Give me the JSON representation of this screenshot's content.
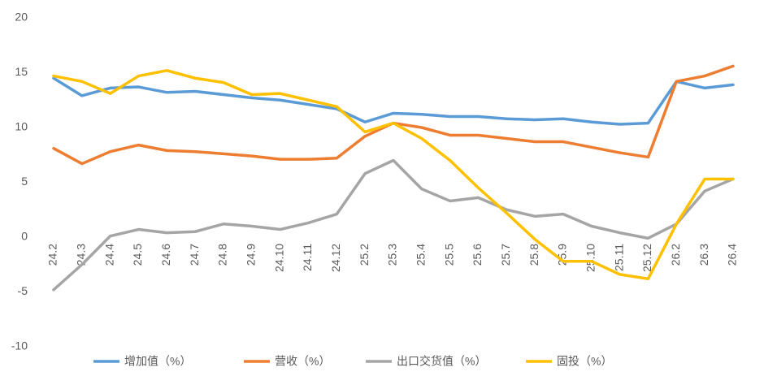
{
  "chart_data": {
    "type": "line",
    "categories": [
      "24.2",
      "24.3",
      "24.4",
      "24.5",
      "24.6",
      "24.7",
      "24.8",
      "24.9",
      "24.10",
      "24.11",
      "24.12",
      "25.2",
      "25.3",
      "25.4",
      "25.5",
      "25.6",
      "25.7",
      "25.8",
      "25.9",
      "25.10",
      "25.11",
      "25.12",
      "26.2",
      "26.3",
      "26.4"
    ],
    "series": [
      {
        "name": "增加值（%）",
        "color": "#5b9bd5",
        "values": [
          14.5,
          12.9,
          13.6,
          13.7,
          13.2,
          13.3,
          13.0,
          12.7,
          12.5,
          12.1,
          11.7,
          10.5,
          11.3,
          11.2,
          11.0,
          11.0,
          10.8,
          10.7,
          10.8,
          10.5,
          10.3,
          10.4,
          14.2,
          13.6,
          13.9
        ]
      },
      {
        "name": "营收（%）",
        "color": "#ed7d31",
        "values": [
          8.1,
          6.7,
          7.8,
          8.4,
          7.9,
          7.8,
          7.6,
          7.4,
          7.1,
          7.1,
          7.2,
          9.2,
          10.4,
          10.0,
          9.3,
          9.3,
          9.0,
          8.7,
          8.7,
          8.2,
          7.7,
          7.3,
          14.2,
          14.7,
          15.6
        ]
      },
      {
        "name": "出口交货值（%）",
        "color": "#a5a5a5",
        "values": [
          -4.8,
          -2.5,
          0.1,
          0.7,
          0.4,
          0.5,
          1.2,
          1.0,
          0.7,
          1.3,
          2.1,
          5.8,
          7.0,
          4.4,
          3.3,
          3.6,
          2.5,
          1.9,
          2.1,
          1.0,
          0.4,
          -0.1,
          1.2,
          4.2,
          5.3
        ]
      },
      {
        "name": "固投（%）",
        "color": "#ffc000",
        "values": [
          14.7,
          14.2,
          13.1,
          14.7,
          15.2,
          14.5,
          14.1,
          13.0,
          13.1,
          12.5,
          11.9,
          9.6,
          10.4,
          9.0,
          7.0,
          4.5,
          2.2,
          -0.2,
          -2.2,
          -2.2,
          -3.4,
          -3.8,
          1.2,
          5.3,
          5.3
        ]
      }
    ],
    "ylim": [
      -10,
      20
    ],
    "yticks": [
      -10,
      -5,
      0,
      5,
      10,
      15,
      20
    ]
  }
}
